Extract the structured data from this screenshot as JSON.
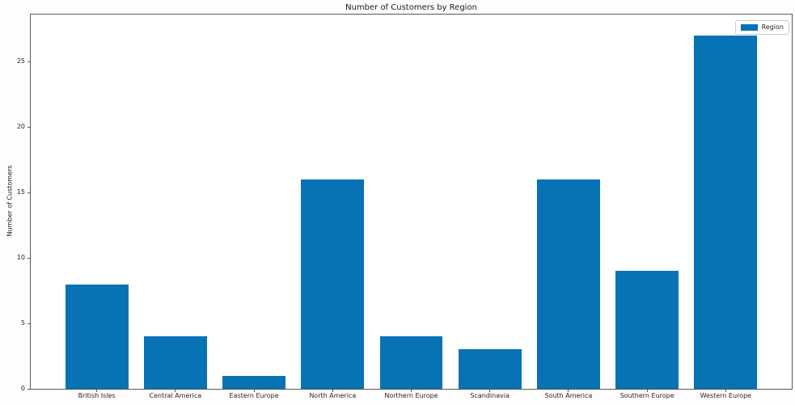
{
  "chart_data": {
    "type": "bar",
    "title": "Number of Customers by Region",
    "xlabel": "",
    "ylabel": "Number of Customers",
    "categories": [
      "British Isles",
      "Central America",
      "Eastern Europe",
      "North America",
      "Northern Europe",
      "Scandinavia",
      "South America",
      "Southern Europe",
      "Western Europe"
    ],
    "values": [
      8,
      4,
      1,
      16,
      4,
      3,
      16,
      9,
      27
    ],
    "series": [
      {
        "name": "Region",
        "values": [
          8,
          4,
          1,
          16,
          4,
          3,
          16,
          9,
          27
        ]
      }
    ],
    "legend_entries": [
      "Region"
    ],
    "legend_position": "upper right",
    "yticks": [
      0,
      5,
      10,
      15,
      20,
      25
    ],
    "ylim": [
      0,
      28.6
    ],
    "xlim": [
      -0.84,
      8.84
    ],
    "bar_width": 0.8,
    "bar_color": "#0773b5",
    "grid": false,
    "background_color": "#ffffff"
  }
}
